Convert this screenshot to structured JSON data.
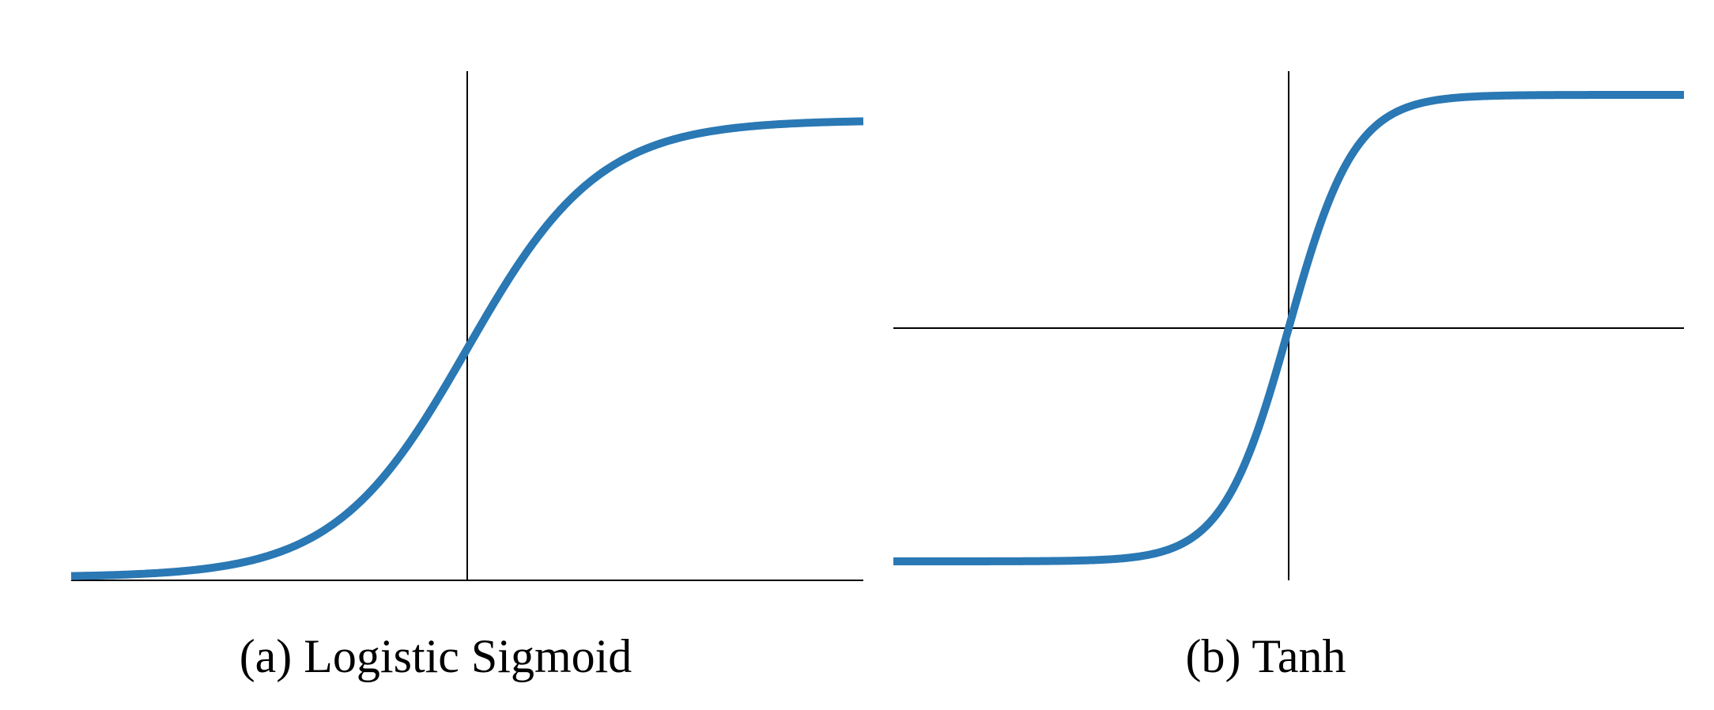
{
  "colors": {
    "curve": "#2a78b4",
    "axis": "#000000",
    "background": "#ffffff"
  },
  "chart_data": [
    {
      "type": "line",
      "title": "",
      "caption": "(a) Logistic Sigmoid",
      "xlabel": "",
      "ylabel": "",
      "xlim": [
        -6,
        6
      ],
      "ylim": [
        0,
        1
      ],
      "grid": false,
      "axes_lines": {
        "vertical_at_x": 0,
        "horizontal_at_y": 0
      },
      "series": [
        {
          "function": "logistic",
          "x": [
            -6,
            -5,
            -4,
            -3,
            -2,
            -1,
            0,
            1,
            2,
            3,
            4,
            5,
            6
          ],
          "y": [
            0.0025,
            0.0067,
            0.018,
            0.047,
            0.119,
            0.269,
            0.5,
            0.731,
            0.881,
            0.953,
            0.982,
            0.9933,
            0.9975
          ]
        }
      ]
    },
    {
      "type": "line",
      "title": "",
      "caption": "(b) Tanh",
      "xlabel": "",
      "ylabel": "",
      "xlim": [
        -6,
        6
      ],
      "ylim": [
        -1,
        1
      ],
      "grid": false,
      "axes_lines": {
        "vertical_at_x": 0,
        "horizontal_at_y": 0
      },
      "series": [
        {
          "function": "tanh",
          "x": [
            -6,
            -5,
            -4,
            -3,
            -2,
            -1,
            0,
            1,
            2,
            3,
            4,
            5,
            6
          ],
          "y": [
            -1.0,
            -0.9999,
            -0.9993,
            -0.995,
            -0.964,
            -0.762,
            0,
            0.762,
            0.964,
            0.995,
            0.9993,
            0.9999,
            1.0
          ]
        }
      ]
    }
  ]
}
